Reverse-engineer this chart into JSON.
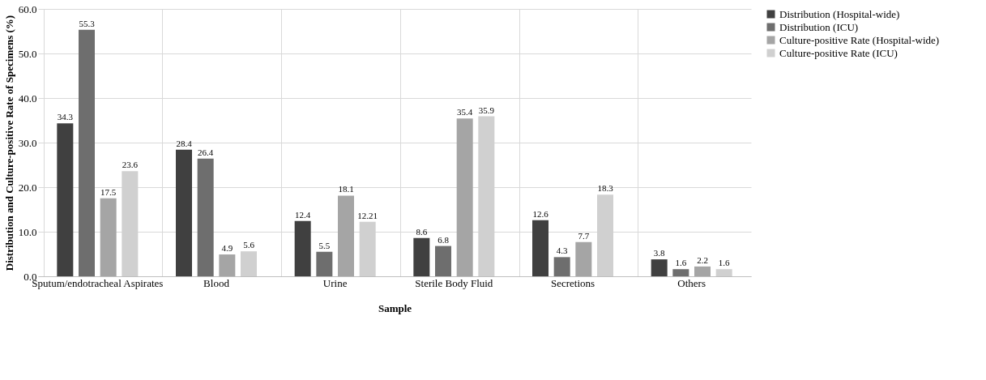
{
  "chart_data": {
    "type": "bar",
    "xlabel": "Sample",
    "ylabel": "Distribution and Culture-positive Rate of Specimens (%)",
    "categories": [
      "Sputum/endotracheal Aspirates",
      "Blood",
      "Urine",
      "Sterile Body Fluid",
      "Secretions",
      "Others"
    ],
    "series": [
      {
        "name": "Distribution (Hospital-wide)",
        "color": "#404040",
        "values": [
          34.3,
          28.4,
          12.4,
          8.6,
          12.6,
          3.8
        ]
      },
      {
        "name": "Distribution (ICU)",
        "color": "#6e6e6e",
        "values": [
          55.3,
          26.4,
          5.5,
          6.8,
          4.3,
          1.6
        ]
      },
      {
        "name": "Culture-positive Rate (Hospital-wide)",
        "color": "#a5a5a5",
        "values": [
          17.5,
          4.9,
          18.1,
          35.4,
          7.7,
          2.2
        ]
      },
      {
        "name": "Culture-positive Rate (ICU)",
        "color": "#d0d0d0",
        "values": [
          23.6,
          5.6,
          12.21,
          35.9,
          18.3,
          1.6
        ]
      }
    ],
    "ylim": [
      0,
      60
    ],
    "yticks": [
      {
        "value": 0,
        "label": "0.0"
      },
      {
        "value": 10,
        "label": "10.0"
      },
      {
        "value": 20,
        "label": "20.0"
      },
      {
        "value": 30,
        "label": "30.0"
      },
      {
        "value": 40,
        "label": "40.0"
      },
      {
        "value": 50,
        "label": "50.0"
      },
      {
        "value": 60,
        "label": "60.0"
      }
    ],
    "grid": true,
    "legend": "right",
    "data_labels": true
  }
}
